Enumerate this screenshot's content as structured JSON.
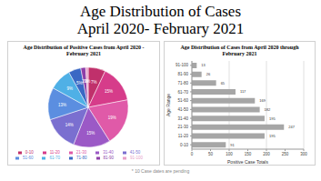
{
  "title": "Age Distribution of Cases",
  "subtitle": "April 2020- February 2021",
  "footnote": "* 10 Case dates are pending",
  "chart_data": [
    {
      "type": "pie",
      "title": "Age Distribution of Positive Cases from April 2020 - February 2021",
      "categories": [
        "0-10",
        "11-20",
        "21-30",
        "31-40",
        "41-50",
        "51-60",
        "61-70",
        "71-80",
        "81-90",
        "91-100"
      ],
      "values": [
        7,
        15,
        19,
        15,
        14,
        13,
        9,
        5,
        2,
        1
      ],
      "value_labels": [
        "7%",
        "15%",
        "19%",
        "15%",
        "14%",
        "13%",
        "9%",
        "5%",
        "2%",
        "1%"
      ],
      "colors": [
        "#c0306b",
        "#d63c8a",
        "#e05aa8",
        "#9b59c6",
        "#7a6fd0",
        "#5b8ee0",
        "#4fb0e6",
        "#3a68c4",
        "#8e3fa8",
        "#e8a0c8"
      ],
      "data_labels": true,
      "legend": "bottom"
    },
    {
      "type": "bar",
      "title": "Age Distribution of Cases from April 2020 through February 2021",
      "orientation": "horizontal",
      "categories": [
        "91-100",
        "81-90",
        "71-80",
        "61-70",
        "51-60",
        "41-50",
        "31-40",
        "21-30",
        "11-20",
        "0-10"
      ],
      "values": [
        13,
        26,
        65,
        117,
        169,
        182,
        195,
        247,
        195,
        91
      ],
      "color": "#a6a6a6",
      "xlabel": "Positive Case Totals",
      "ylabel": "Age Range",
      "xlim": [
        0,
        300
      ],
      "xticks": [
        0,
        50,
        100,
        150,
        200,
        250,
        300
      ],
      "grid": true,
      "data_labels": true
    }
  ]
}
